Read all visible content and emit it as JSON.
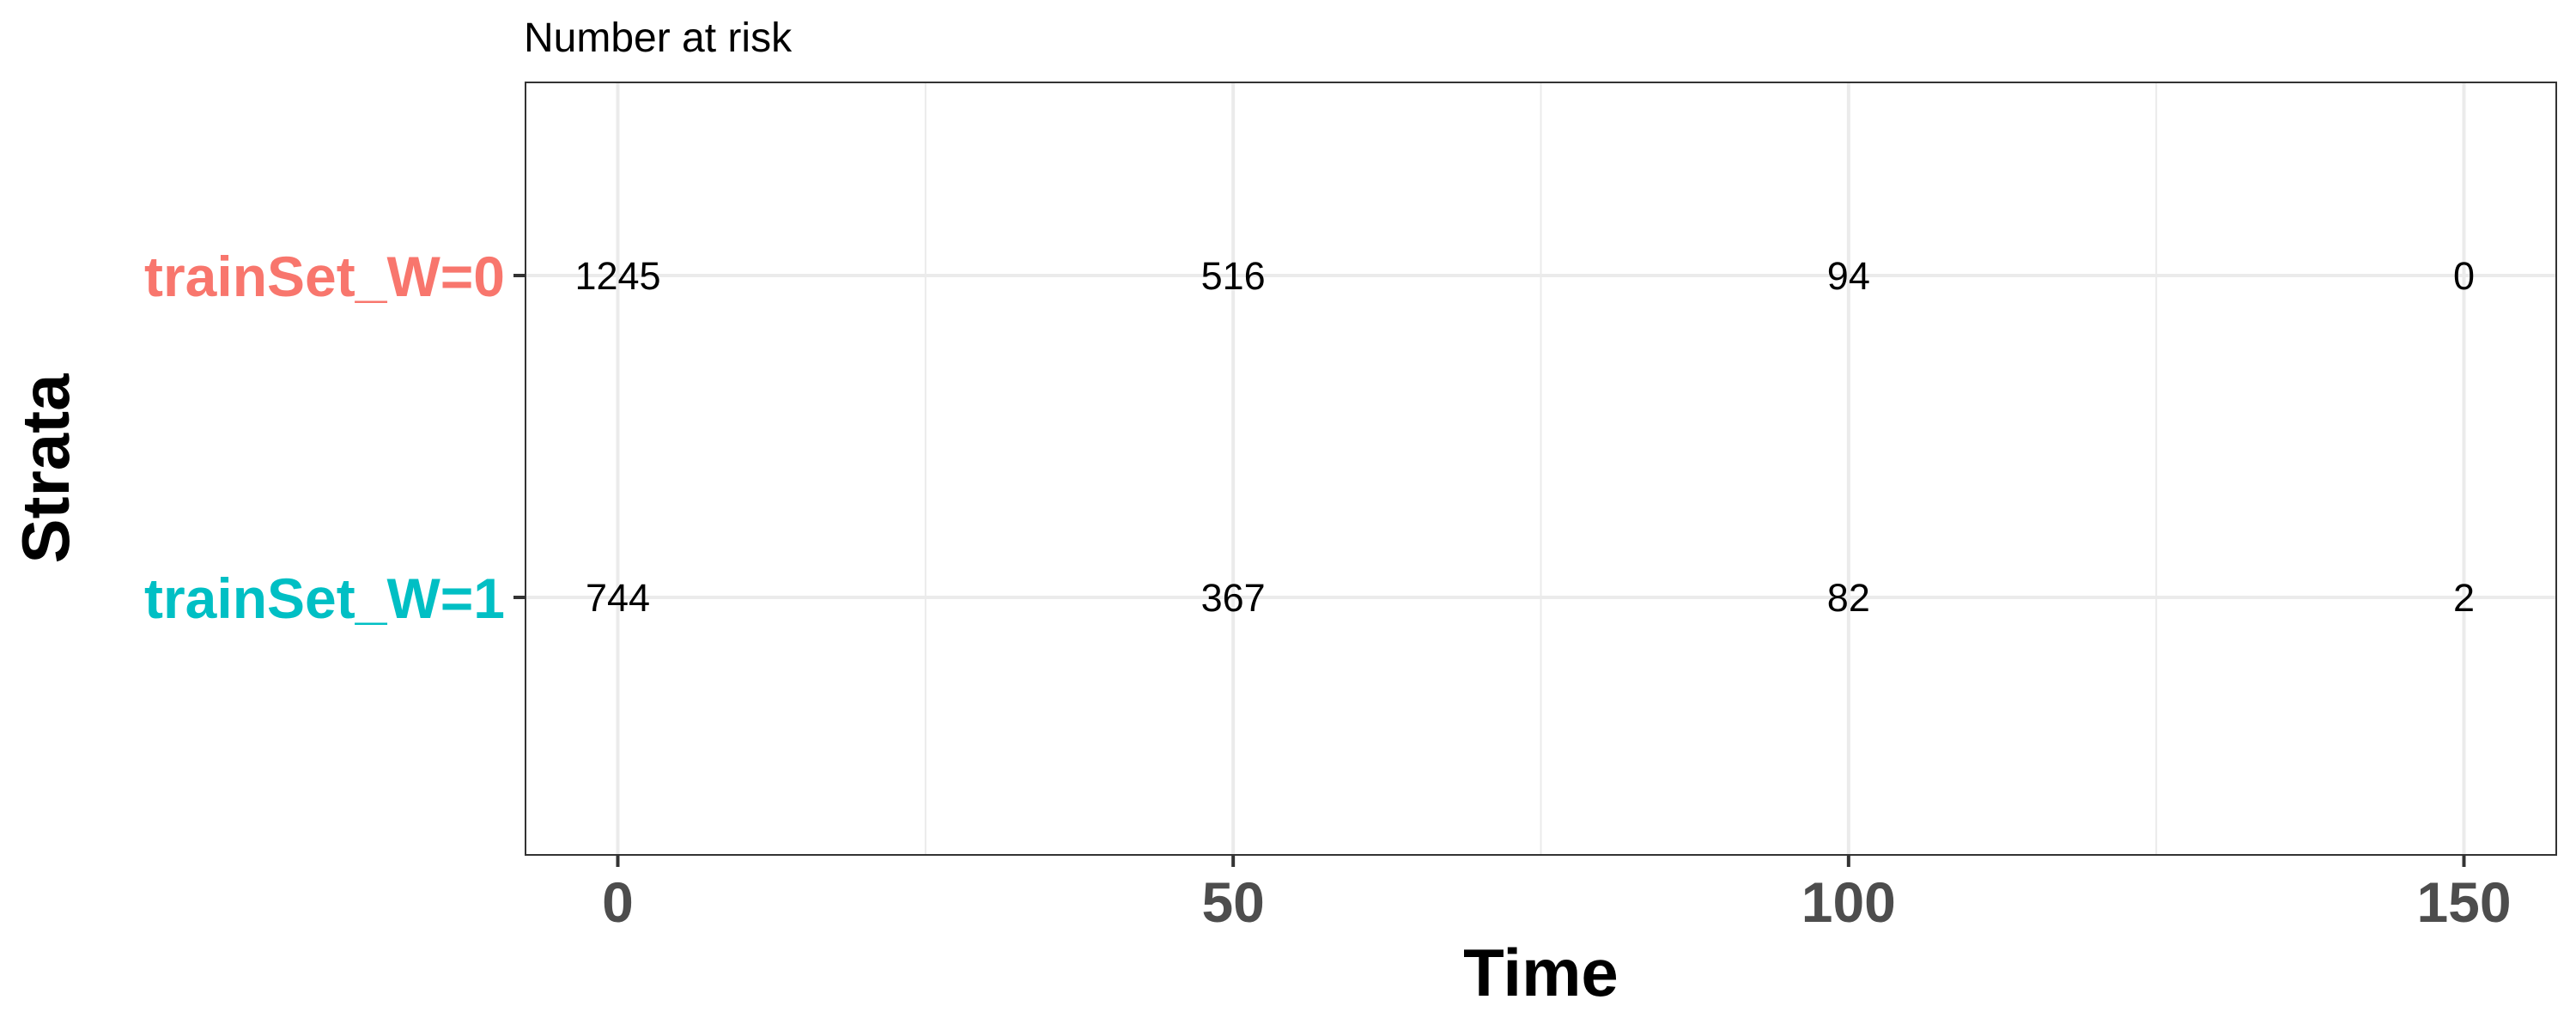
{
  "chart_data": {
    "type": "table",
    "title": "Number at risk",
    "xlabel": "Time",
    "ylabel": "Strata",
    "xlim": [
      -7.5,
      157.5
    ],
    "x_ticks": [
      0,
      50,
      100,
      150
    ],
    "x_tick_labels": [
      "0",
      "50",
      "100",
      "150"
    ],
    "x_minor_ticks": [
      25,
      75,
      125
    ],
    "grid": true,
    "legend": "none",
    "series": [
      {
        "name": "trainSet_W=0",
        "color": "#F8766D",
        "x": [
          0,
          50,
          100,
          150
        ],
        "values": [
          1245,
          516,
          94,
          0
        ]
      },
      {
        "name": "trainSet_W=1",
        "color": "#00BFC4",
        "x": [
          0,
          50,
          100,
          150
        ],
        "values": [
          744,
          367,
          82,
          2
        ]
      }
    ]
  }
}
